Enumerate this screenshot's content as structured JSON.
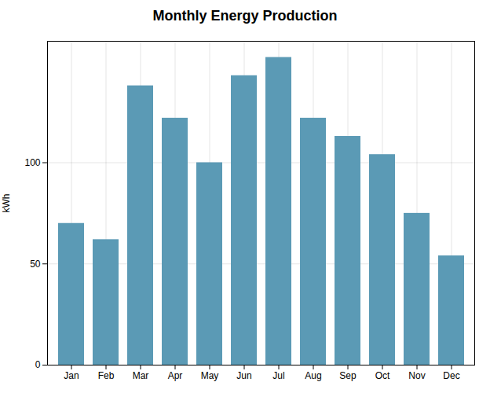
{
  "chart_data": {
    "type": "bar",
    "title": "Monthly Energy Production",
    "categories": [
      "Jan",
      "Feb",
      "Mar",
      "Apr",
      "May",
      "Jun",
      "Jul",
      "Aug",
      "Sep",
      "Oct",
      "Nov",
      "Dec"
    ],
    "values": [
      70,
      62,
      138,
      122,
      100,
      143,
      152,
      122,
      113,
      104,
      75,
      54
    ],
    "color": "#5b9ab5",
    "ylabel": "kWh",
    "ylim": [
      0,
      160
    ],
    "yticks": [
      0,
      50,
      100
    ],
    "grid": true
  }
}
